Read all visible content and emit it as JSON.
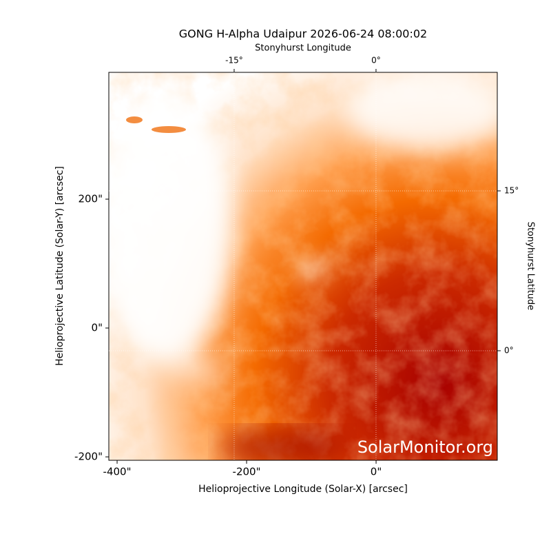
{
  "chart_data": {
    "type": "image",
    "title": "GONG H-Alpha Udaipur 2026-06-24 08:00:02",
    "x_label": "Helioprojective Longitude (Solar-X) [arcsec]",
    "y_label": "Helioprojective Latitude (Solar-Y) [arcsec]",
    "x2_label": "Stonyhurst Longitude",
    "y2_label": "Stonyhurst Latitude",
    "watermark": "SolarMonitor.org",
    "xlim": [
      -412.8,
      187.2
    ],
    "ylim": [
      -205.3,
      396.8
    ],
    "xticks": [
      {
        "value": -400,
        "label": "-400\""
      },
      {
        "value": -200,
        "label": "-200\""
      },
      {
        "value": 0,
        "label": "0\""
      }
    ],
    "yticks": [
      {
        "value": -200,
        "label": "-200\""
      },
      {
        "value": 0,
        "label": "0\""
      },
      {
        "value": 200,
        "label": "200\""
      }
    ],
    "x2lim": [
      -28.25,
      12.82
    ],
    "x2ticks": [
      {
        "value": -15,
        "label": "-15°"
      },
      {
        "value": 0,
        "label": "0°"
      }
    ],
    "y2lim": [
      -10.28,
      26.12
    ],
    "y2ticks": [
      {
        "value": 0,
        "label": "0°"
      },
      {
        "value": 15,
        "label": "15°"
      }
    ],
    "grid": true
  }
}
